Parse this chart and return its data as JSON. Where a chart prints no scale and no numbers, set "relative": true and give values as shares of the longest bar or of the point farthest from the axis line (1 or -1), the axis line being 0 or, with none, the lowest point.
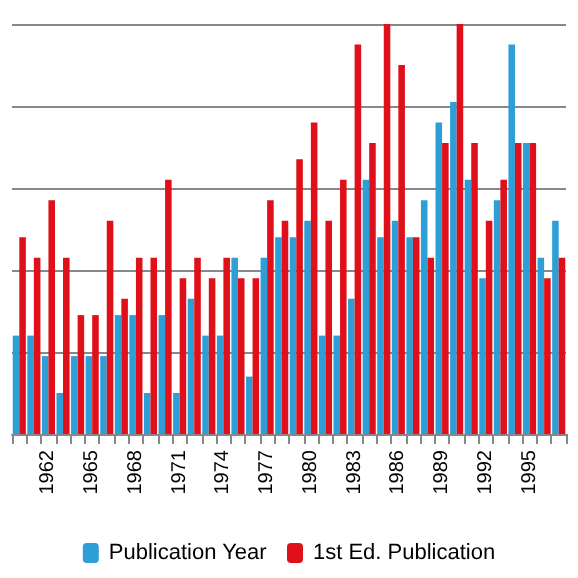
{
  "chart_data": {
    "type": "bar",
    "relative": true,
    "grid": "y",
    "legend": "bottom",
    "categories": [
      null,
      null,
      "1962",
      null,
      null,
      "1965",
      null,
      null,
      "1968",
      null,
      null,
      "1971",
      null,
      null,
      "1974",
      null,
      null,
      "1977",
      null,
      null,
      "1980",
      null,
      null,
      "1983",
      null,
      null,
      "1986",
      null,
      null,
      "1989",
      null,
      null,
      "1992",
      null,
      null,
      "1995",
      null,
      null
    ],
    "series": [
      {
        "name": "Publication Year",
        "color": "#2e9fd6",
        "values": [
          0.24,
          0.24,
          0.19,
          0.1,
          0.19,
          0.19,
          0.19,
          0.29,
          0.29,
          0.1,
          0.29,
          0.1,
          0.33,
          0.24,
          0.24,
          0.43,
          0.14,
          0.43,
          0.48,
          0.48,
          0.52,
          0.24,
          0.24,
          0.33,
          0.62,
          0.48,
          0.52,
          0.48,
          0.57,
          0.76,
          0.81,
          0.62,
          0.38,
          0.57,
          0.95,
          0.71,
          0.43,
          0.52
        ]
      },
      {
        "name": "1st Ed. Publication",
        "color": "#e0101a",
        "values": [
          0.48,
          0.43,
          0.57,
          0.43,
          0.29,
          0.29,
          0.52,
          0.33,
          0.43,
          0.43,
          0.62,
          0.38,
          0.43,
          0.38,
          0.43,
          0.38,
          0.38,
          0.57,
          0.52,
          0.67,
          0.76,
          0.52,
          0.62,
          0.95,
          0.71,
          1,
          0.9,
          0.48,
          0.43,
          0.71,
          1,
          0.71,
          0.52,
          0.62,
          0.71,
          0.71,
          0.38,
          0.43
        ]
      }
    ]
  }
}
